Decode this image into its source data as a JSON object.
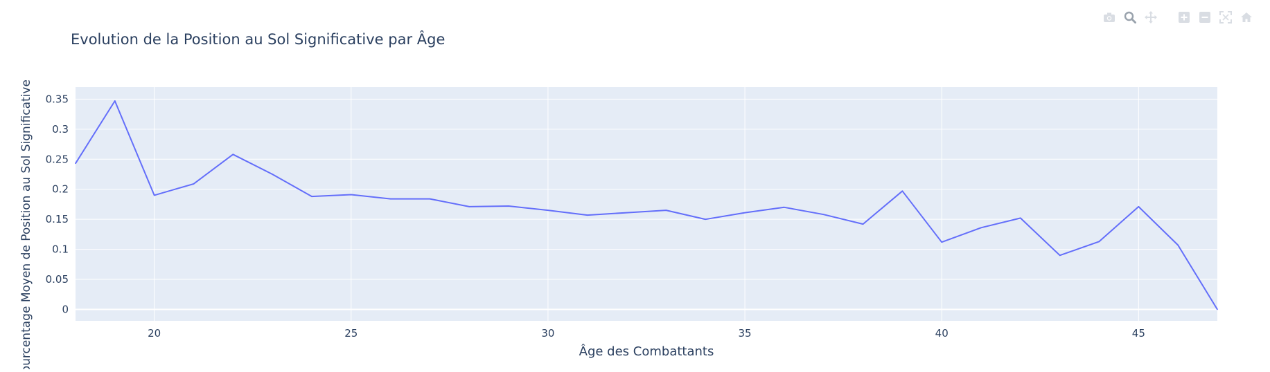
{
  "colors": {
    "plot_bg": "#e5ecf6",
    "grid": "#ffffff",
    "line": "#636efa",
    "text": "#2a3f5f",
    "modebar_icon": "#d9dde3"
  },
  "modebar": {
    "icons": [
      "camera-icon",
      "zoom-icon",
      "pan-icon",
      "zoom-in-icon",
      "zoom-out-icon",
      "autoscale-icon",
      "home-icon"
    ]
  },
  "chart_data": {
    "type": "line",
    "title": "Evolution de la Position au Sol Significative par Âge",
    "xlabel": "Âge des Combattants",
    "ylabel": "Pourcentage Moyen de Position au Sol Significative",
    "xlim": [
      18,
      47
    ],
    "ylim": [
      -0.019,
      0.37
    ],
    "x_ticks": [
      20,
      25,
      30,
      35,
      40,
      45
    ],
    "y_ticks": [
      0,
      0.05,
      0.1,
      0.15,
      0.2,
      0.25,
      0.3,
      0.35
    ],
    "y_tick_labels": [
      "0",
      "0.05",
      "0.1",
      "0.15",
      "0.2",
      "0.25",
      "0.3",
      "0.35"
    ],
    "grid": true,
    "legend": "none",
    "series": [
      {
        "x": [
          18,
          19,
          20,
          21,
          22,
          23,
          24,
          25,
          26,
          27,
          28,
          29,
          30,
          31,
          32,
          33,
          34,
          35,
          36,
          37,
          38,
          39,
          40,
          41,
          42,
          43,
          44,
          45,
          46,
          47
        ],
        "values": [
          0.243,
          0.347,
          0.19,
          0.209,
          0.258,
          0.225,
          0.188,
          0.191,
          0.184,
          0.184,
          0.171,
          0.172,
          0.165,
          0.157,
          0.161,
          0.165,
          0.15,
          0.161,
          0.17,
          0.158,
          0.142,
          0.197,
          0.112,
          0.136,
          0.152,
          0.09,
          0.113,
          0.171,
          0.107,
          0.0
        ]
      }
    ]
  }
}
